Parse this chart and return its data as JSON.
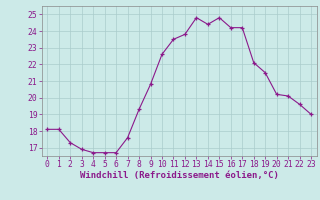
{
  "hours": [
    0,
    1,
    2,
    3,
    4,
    5,
    6,
    7,
    8,
    9,
    10,
    11,
    12,
    13,
    14,
    15,
    16,
    17,
    18,
    19,
    20,
    21,
    22,
    23
  ],
  "values": [
    18.1,
    18.1,
    17.3,
    16.9,
    16.7,
    16.7,
    16.7,
    17.6,
    19.3,
    20.8,
    22.6,
    23.5,
    23.8,
    24.8,
    24.4,
    24.8,
    24.2,
    24.2,
    22.1,
    21.5,
    20.2,
    20.1,
    19.6,
    19.0
  ],
  "xlim": [
    -0.5,
    23.5
  ],
  "ylim": [
    16.5,
    25.5
  ],
  "yticks": [
    17,
    18,
    19,
    20,
    21,
    22,
    23,
    24,
    25
  ],
  "xtick_labels": [
    "0",
    "1",
    "2",
    "3",
    "4",
    "5",
    "6",
    "7",
    "8",
    "9",
    "10",
    "11",
    "12",
    "13",
    "14",
    "15",
    "16",
    "17",
    "18",
    "19",
    "20",
    "21",
    "22",
    "23"
  ],
  "xlabel": "Windchill (Refroidissement éolien,°C)",
  "line_color": "#8b1a8b",
  "marker": "+",
  "bg_color": "#cceae8",
  "grid_color": "#aacccc",
  "label_fontsize": 6.5,
  "tick_fontsize": 5.8
}
